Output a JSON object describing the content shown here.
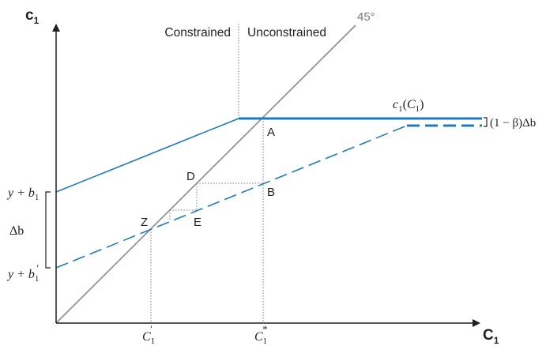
{
  "colors": {
    "axis": "#231f20",
    "curve": "#1f7bc1",
    "diagonal": "#8a8a8a",
    "guide": "#7a7a7a"
  },
  "axes": {
    "y_label": "c",
    "y_label_sub": "1",
    "x_label": "C",
    "x_label_sub": "1"
  },
  "regions": {
    "left": "Constrained",
    "right": "Unconstrained"
  },
  "diagonal_label": "45°",
  "curve_label": {
    "main": "c",
    "sub": "1",
    "arg_open": "(",
    "arg": "C",
    "arg_sub": "1",
    "arg_close": ")"
  },
  "bracket_label": "(1 − β)Δb",
  "points": {
    "A": "A",
    "B": "B",
    "D": "D",
    "E": "E",
    "Z": "Z"
  },
  "y_ticks": {
    "upper": {
      "base": "y + b",
      "sub": "1",
      "prime": ""
    },
    "lower": {
      "base": "y + b",
      "sub": "1",
      "prime": "′"
    },
    "gap": "Δb"
  },
  "x_ticks": {
    "left": {
      "base": "C",
      "sub": "1",
      "sup": "′"
    },
    "right": {
      "base": "C",
      "sub": "1",
      "sup": "*"
    }
  }
}
